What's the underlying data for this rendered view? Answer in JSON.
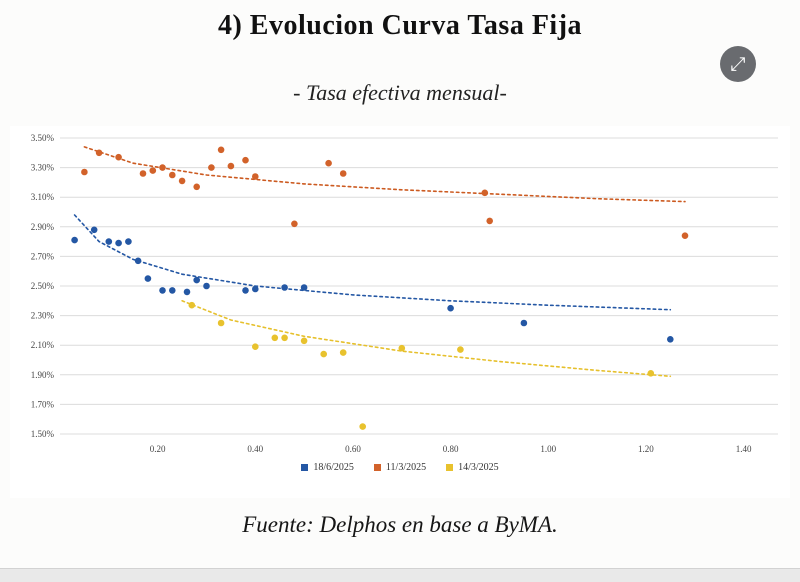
{
  "page": {
    "title": "4) Evolucion Curva Tasa Fija",
    "subtitle": "- Tasa efectiva mensual-",
    "source": "Fuente: Delphos en base a ByMA."
  },
  "icons": {
    "expand_glyph": "⤢"
  },
  "chart_data": {
    "type": "scatter",
    "title": "Evolucion Curva Tasa Fija - Tasa efectiva mensual",
    "xlabel": "",
    "ylabel": "",
    "xlim": [
      0,
      1.45
    ],
    "ylim": [
      1.5,
      3.5
    ],
    "grid": "horizontal",
    "legend_position": "bottom",
    "y_ticks": [
      {
        "value": 3.5,
        "label": "3.50%"
      },
      {
        "value": 3.3,
        "label": "3.30%"
      },
      {
        "value": 3.1,
        "label": "3.10%"
      },
      {
        "value": 2.9,
        "label": "2.90%"
      },
      {
        "value": 2.7,
        "label": "2.70%"
      },
      {
        "value": 2.5,
        "label": "2.50%"
      },
      {
        "value": 2.3,
        "label": "2.30%"
      },
      {
        "value": 2.1,
        "label": "2.10%"
      },
      {
        "value": 1.9,
        "label": "1.90%"
      },
      {
        "value": 1.7,
        "label": "1.70%"
      },
      {
        "value": 1.5,
        "label": "1.50%"
      }
    ],
    "x_ticks": [
      {
        "value": 0.2,
        "label": "0.20"
      },
      {
        "value": 0.4,
        "label": "0.40"
      },
      {
        "value": 0.6,
        "label": "0.60"
      },
      {
        "value": 0.8,
        "label": "0.80"
      },
      {
        "value": 1.0,
        "label": "1.00"
      },
      {
        "value": 1.2,
        "label": "1.20"
      },
      {
        "value": 1.4,
        "label": "1.40"
      }
    ],
    "series": [
      {
        "name": "18/6/2025",
        "color": "#2457a4",
        "trend_color": "#2457a4",
        "points": [
          [
            0.03,
            2.81
          ],
          [
            0.07,
            2.88
          ],
          [
            0.1,
            2.8
          ],
          [
            0.12,
            2.79
          ],
          [
            0.14,
            2.8
          ],
          [
            0.16,
            2.67
          ],
          [
            0.18,
            2.55
          ],
          [
            0.21,
            2.47
          ],
          [
            0.23,
            2.47
          ],
          [
            0.26,
            2.46
          ],
          [
            0.28,
            2.54
          ],
          [
            0.3,
            2.5
          ],
          [
            0.38,
            2.47
          ],
          [
            0.4,
            2.48
          ],
          [
            0.46,
            2.49
          ],
          [
            0.5,
            2.49
          ],
          [
            0.8,
            2.35
          ],
          [
            0.95,
            2.25
          ],
          [
            1.25,
            2.14
          ]
        ],
        "trend": [
          [
            0.03,
            2.98
          ],
          [
            0.08,
            2.8
          ],
          [
            0.15,
            2.68
          ],
          [
            0.25,
            2.58
          ],
          [
            0.4,
            2.5
          ],
          [
            0.6,
            2.44
          ],
          [
            0.8,
            2.4
          ],
          [
            1.0,
            2.37
          ],
          [
            1.25,
            2.34
          ]
        ]
      },
      {
        "name": "11/3/2025",
        "color": "#d2622a",
        "trend_color": "#cc5a20",
        "points": [
          [
            0.05,
            3.27
          ],
          [
            0.08,
            3.4
          ],
          [
            0.12,
            3.37
          ],
          [
            0.17,
            3.26
          ],
          [
            0.19,
            3.28
          ],
          [
            0.21,
            3.3
          ],
          [
            0.23,
            3.25
          ],
          [
            0.25,
            3.21
          ],
          [
            0.28,
            3.17
          ],
          [
            0.31,
            3.3
          ],
          [
            0.33,
            3.42
          ],
          [
            0.35,
            3.31
          ],
          [
            0.38,
            3.35
          ],
          [
            0.4,
            3.24
          ],
          [
            0.48,
            2.92
          ],
          [
            0.55,
            3.33
          ],
          [
            0.58,
            3.26
          ],
          [
            0.87,
            3.13
          ],
          [
            0.88,
            2.94
          ],
          [
            1.28,
            2.84
          ]
        ],
        "trend": [
          [
            0.05,
            3.44
          ],
          [
            0.15,
            3.33
          ],
          [
            0.3,
            3.25
          ],
          [
            0.5,
            3.19
          ],
          [
            0.7,
            3.15
          ],
          [
            0.9,
            3.12
          ],
          [
            1.1,
            3.09
          ],
          [
            1.28,
            3.07
          ]
        ]
      },
      {
        "name": "14/3/2025",
        "color": "#e8c22e",
        "trend_color": "#e6c02c",
        "points": [
          [
            0.27,
            2.37
          ],
          [
            0.33,
            2.25
          ],
          [
            0.4,
            2.09
          ],
          [
            0.44,
            2.15
          ],
          [
            0.46,
            2.15
          ],
          [
            0.5,
            2.13
          ],
          [
            0.54,
            2.04
          ],
          [
            0.58,
            2.05
          ],
          [
            0.62,
            1.55
          ],
          [
            0.7,
            2.08
          ],
          [
            0.82,
            2.07
          ],
          [
            1.21,
            1.91
          ]
        ],
        "trend": [
          [
            0.25,
            2.4
          ],
          [
            0.35,
            2.27
          ],
          [
            0.5,
            2.16
          ],
          [
            0.7,
            2.06
          ],
          [
            0.9,
            1.99
          ],
          [
            1.1,
            1.93
          ],
          [
            1.25,
            1.89
          ]
        ]
      }
    ]
  }
}
